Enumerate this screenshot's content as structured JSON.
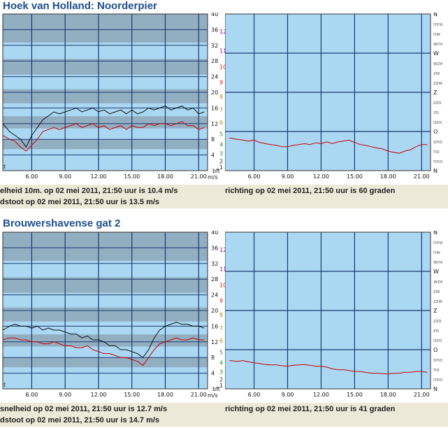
{
  "stations": [
    {
      "title": "Hoek van Holland: Noorderpier",
      "status": {
        "speed_line": "elheid 10m. op 02 mei 2011, 21:50 uur is 10.4 m/s",
        "gust_line": "dstoot op 02 mei 2011, 21:50 uur is 13.5 m/s",
        "direction_line": "richting op 02 mei 2011, 21:50 uur is 60 graden"
      }
    },
    {
      "title": "Brouwershavense gat 2",
      "status": {
        "speed_line": "snelheid op 02 mei 2011, 21:50 uur is 12.7 m/s",
        "gust_line": "dstoot op 02 mei 2011, 21:50 uur is 14.7 m/s",
        "direction_line": "richting op 02 mei 2011, 21:50 uur is 41 graden"
      }
    }
  ],
  "axis": {
    "time_ticks": [
      "6.00",
      "9.00",
      "12.00",
      "15.00",
      "18.00",
      "21.00"
    ],
    "speed_ticks": [
      "4",
      "8",
      "12",
      "16",
      "20",
      "24",
      "28",
      "32",
      "36",
      "40"
    ],
    "bft_ticks": [
      "1",
      "2",
      "3",
      "4",
      "5",
      "6",
      "7",
      "8",
      "9",
      "10",
      "11",
      "12"
    ],
    "unit_ms": "m/s",
    "unit_bft": "bft",
    "corner_label": "t",
    "dir_major": [
      "N",
      "W",
      "Z",
      "O",
      "N"
    ],
    "dir_minor": [
      "nnw",
      "nw",
      "wnw",
      "wzw",
      "zw",
      "zzw",
      "zzo",
      "zo",
      "ozo",
      "ono",
      "no",
      "nno"
    ]
  },
  "colors": {
    "title": "#1d4f8c",
    "plot_bg": "#aad8f2",
    "band": "#8aa0b0",
    "grid": "#1a3a70",
    "gust_series": "#111111",
    "speed_series": "#cc0000",
    "direction_series": "#cc0000",
    "status_bg": "#ece9d8"
  },
  "chart_data": [
    {
      "type": "line",
      "title": "Hoek van Holland: Noorderpier",
      "x_ticks": [
        "6.00",
        "9.00",
        "12.00",
        "15.00",
        "18.00",
        "21.00"
      ],
      "xlim": [
        3.4,
        21.8
      ],
      "ylabel": "m/s",
      "ylabel2": "bft",
      "ylim": [
        0,
        40
      ],
      "series": [
        {
          "color": "black",
          "x": [
            3.4,
            4.0,
            4.5,
            5.0,
            5.5,
            6.0,
            6.5,
            7.0,
            7.5,
            8.0,
            8.5,
            9.0,
            9.5,
            10.0,
            10.5,
            11.0,
            11.5,
            12.0,
            12.5,
            13.0,
            13.5,
            14.0,
            14.5,
            15.0,
            15.5,
            16.0,
            16.5,
            17.0,
            17.5,
            18.0,
            18.5,
            19.0,
            19.5,
            20.0,
            20.5,
            21.0,
            21.5
          ],
          "values": [
            12,
            10,
            9,
            8,
            6,
            9,
            11,
            13,
            14,
            15,
            14.5,
            15,
            15.5,
            16,
            15,
            15.5,
            16,
            15,
            15.5,
            14.5,
            15,
            15.5,
            14.5,
            15.5,
            14.5,
            15,
            16,
            15.5,
            16,
            16.5,
            15.5,
            16,
            16.5,
            15.5,
            16,
            14.5,
            15
          ]
        },
        {
          "color": "red",
          "x": [
            3.4,
            4.0,
            4.5,
            5.0,
            5.5,
            6.0,
            6.5,
            7.0,
            7.5,
            8.0,
            8.5,
            9.0,
            9.5,
            10.0,
            10.5,
            11.0,
            11.5,
            12.0,
            12.5,
            13.0,
            13.5,
            14.0,
            14.5,
            15.0,
            15.5,
            16.0,
            16.5,
            17.0,
            17.5,
            18.0,
            18.5,
            19.0,
            19.5,
            20.0,
            20.5,
            21.0,
            21.5
          ],
          "values": [
            9,
            8,
            7.5,
            6,
            5,
            6.5,
            8,
            10,
            10.5,
            11,
            10.5,
            11,
            11.5,
            12,
            11,
            11.5,
            12,
            11,
            11.5,
            10.5,
            11,
            11.5,
            10.5,
            11.5,
            11,
            11,
            12,
            11.5,
            12,
            12,
            11.5,
            12,
            12.5,
            11.5,
            11.5,
            10.5,
            11
          ]
        }
      ]
    },
    {
      "type": "line",
      "title": "Hoek van Holland: Noorderpier",
      "x_ticks": [
        "6.00",
        "9.00",
        "12.00",
        "15.00",
        "18.00",
        "21.00"
      ],
      "xlim": [
        3.4,
        21.8
      ],
      "ylim": [
        0,
        360
      ],
      "y_tick_labels": [
        "N",
        "nno",
        "no",
        "ono",
        "O",
        "ozo",
        "zo",
        "zzo",
        "Z",
        "zzw",
        "zw",
        "wzw",
        "W",
        "wnw",
        "nw",
        "nnw",
        "N"
      ],
      "series": [
        {
          "color": "red",
          "x": [
            3.8,
            4.5,
            5.0,
            5.5,
            6.0,
            6.5,
            7.0,
            7.5,
            8.0,
            8.5,
            9.0,
            9.5,
            10.0,
            10.5,
            11.0,
            11.5,
            12.0,
            12.5,
            13.0,
            13.5,
            14.0,
            14.5,
            15.0,
            15.5,
            16.0,
            16.5,
            17.0,
            17.5,
            18.0,
            18.5,
            19.0,
            19.5,
            20.0,
            20.5,
            21.0,
            21.5
          ],
          "values": [
            75,
            72,
            70,
            68,
            70,
            65,
            62,
            60,
            58,
            55,
            55,
            58,
            60,
            62,
            60,
            64,
            62,
            66,
            62,
            66,
            68,
            70,
            65,
            60,
            58,
            55,
            52,
            50,
            45,
            42,
            40,
            45,
            48,
            55,
            60,
            60
          ]
        }
      ]
    },
    {
      "type": "line",
      "title": "Brouwershavense gat 2",
      "x_ticks": [
        "6.00",
        "9.00",
        "12.00",
        "15.00",
        "18.00",
        "21.00"
      ],
      "xlim": [
        3.4,
        21.8
      ],
      "ylabel": "m/s",
      "ylabel2": "bft",
      "ylim": [
        0,
        40
      ],
      "series": [
        {
          "color": "black",
          "x": [
            3.4,
            4.0,
            4.5,
            5.0,
            5.5,
            6.0,
            6.5,
            7.0,
            7.5,
            8.0,
            8.5,
            9.0,
            9.5,
            10.0,
            10.5,
            11.0,
            11.5,
            12.0,
            12.5,
            13.0,
            13.5,
            14.0,
            14.5,
            15.0,
            15.5,
            16.0,
            16.5,
            17.0,
            17.5,
            18.0,
            18.5,
            19.0,
            19.5,
            20.0,
            20.5,
            21.0,
            21.5
          ],
          "values": [
            15,
            16,
            16.5,
            16,
            16,
            15.5,
            16,
            15,
            15.5,
            15,
            15,
            14.5,
            14,
            14,
            13,
            13.5,
            12.5,
            12.5,
            12,
            11,
            11,
            10,
            10,
            9.5,
            9,
            8,
            10,
            13,
            15,
            16,
            16.5,
            17,
            16.5,
            16.5,
            16,
            16,
            15.5
          ]
        },
        {
          "color": "red",
          "x": [
            3.4,
            4.0,
            4.5,
            5.0,
            5.5,
            6.0,
            6.5,
            7.0,
            7.5,
            8.0,
            8.5,
            9.0,
            9.5,
            10.0,
            10.5,
            11.0,
            11.5,
            12.0,
            12.5,
            13.0,
            13.5,
            14.0,
            14.5,
            15.0,
            15.5,
            16.0,
            16.5,
            17.0,
            17.5,
            18.0,
            18.5,
            19.0,
            19.5,
            20.0,
            20.5,
            21.0,
            21.5
          ],
          "values": [
            12.5,
            13,
            13,
            12.5,
            12.5,
            12,
            12,
            11.5,
            11.5,
            12,
            11.5,
            11,
            11,
            10.5,
            10.5,
            11,
            10,
            9.5,
            9,
            9,
            8.5,
            8,
            8,
            7.5,
            7,
            6,
            8,
            10,
            11.5,
            12,
            12.5,
            13,
            12.5,
            12.5,
            13,
            12.5,
            12.5
          ]
        }
      ]
    },
    {
      "type": "line",
      "title": "Brouwershavense gat 2",
      "x_ticks": [
        "6.00",
        "9.00",
        "12.00",
        "15.00",
        "18.00",
        "21.00"
      ],
      "xlim": [
        3.4,
        21.8
      ],
      "ylim": [
        0,
        360
      ],
      "y_tick_labels": [
        "N",
        "nno",
        "no",
        "ono",
        "O",
        "ozo",
        "zo",
        "zzo",
        "Z",
        "zzw",
        "zw",
        "wzw",
        "W",
        "wnw",
        "nw",
        "nnw",
        "N"
      ],
      "series": [
        {
          "color": "red",
          "x": [
            3.8,
            4.5,
            5.0,
            5.5,
            6.0,
            6.5,
            7.0,
            7.5,
            8.0,
            8.5,
            9.0,
            9.5,
            10.0,
            10.5,
            11.0,
            11.5,
            12.0,
            12.5,
            13.0,
            13.5,
            14.0,
            14.5,
            15.0,
            15.5,
            16.0,
            16.5,
            17.0,
            17.5,
            18.0,
            18.5,
            19.0,
            19.5,
            20.0,
            20.5,
            21.0,
            21.5
          ],
          "values": [
            65,
            63,
            65,
            62,
            60,
            58,
            56,
            55,
            55,
            53,
            52,
            54,
            55,
            56,
            54,
            52,
            52,
            50,
            46,
            44,
            44,
            42,
            40,
            40,
            38,
            36,
            36,
            35,
            34,
            36,
            36,
            38,
            38,
            40,
            40,
            38
          ]
        }
      ]
    }
  ]
}
